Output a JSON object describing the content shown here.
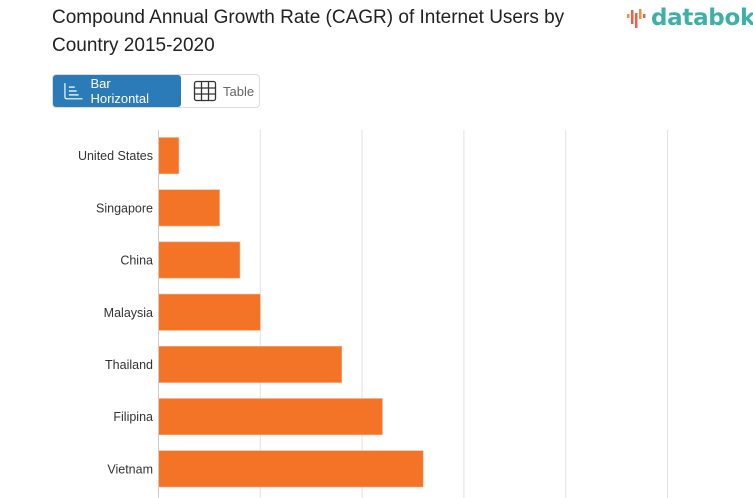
{
  "header": {
    "title": "Compound Annual Growth Rate (CAGR) of Internet Users by Country 2015-2020",
    "logo_text": "databoks"
  },
  "view_toggle": {
    "bar_label": "Bar Horizontal",
    "bar_icon": "bar-horizontal-icon",
    "table_label": "Table",
    "table_icon": "table-grid-icon",
    "active": "Bar Horizontal",
    "active_color": "#2b7bb9"
  },
  "chart_data": {
    "type": "bar",
    "orientation": "horizontal",
    "categories": [
      "United States",
      "Singapore",
      "China",
      "Malaysia",
      "Thailand",
      "Filipina",
      "Vietnam"
    ],
    "values": [
      2,
      6,
      8,
      10,
      18,
      22,
      26
    ],
    "xlim": [
      0,
      50
    ],
    "grid_step": 10,
    "grid": true,
    "bar_color": "#f37327",
    "title": "",
    "xlabel": "",
    "ylabel": ""
  }
}
